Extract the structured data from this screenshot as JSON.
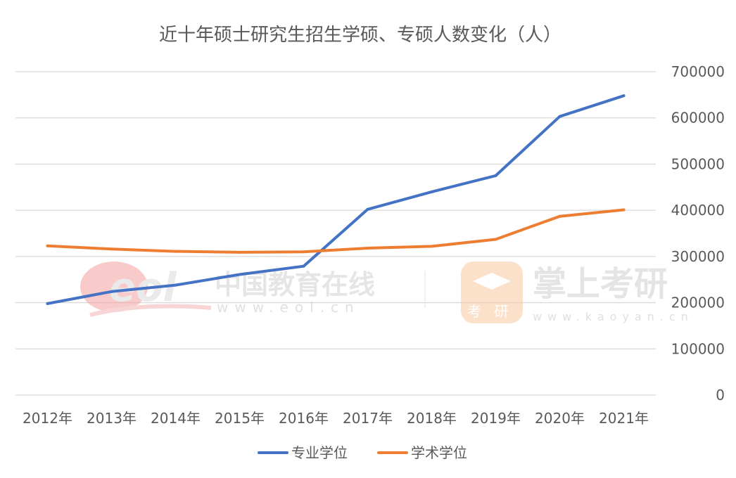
{
  "chart_data": {
    "type": "line",
    "title": "近十年硕士研究生招生学硕、专硕人数变化（人）",
    "categories": [
      "2012年",
      "2013年",
      "2014年",
      "2015年",
      "2016年",
      "2017年",
      "2018年",
      "2019年",
      "2020年",
      "2021年"
    ],
    "y_ticks": [
      "0",
      "100000",
      "200000",
      "300000",
      "400000",
      "500000",
      "600000",
      "700000"
    ],
    "ylim": [
      0,
      700000
    ],
    "grid": true,
    "y_axis_side": "right",
    "legend_position": "bottom",
    "series": [
      {
        "name": "专业学位",
        "color": "#4472C4",
        "values": [
          198000,
          224000,
          238000,
          261000,
          279000,
          402000,
          440000,
          475000,
          603000,
          648000
        ]
      },
      {
        "name": "学术学位",
        "color": "#ED7D31",
        "values": [
          323000,
          316000,
          311000,
          309000,
          310000,
          318000,
          322000,
          337000,
          387000,
          401000
        ]
      }
    ]
  },
  "watermarks": {
    "eol_logo": "eol",
    "eol_name": "中国教育在线",
    "eol_url": "www.eol.cn",
    "kaoyan_icon_text": "考 研",
    "kaoyan_name": "掌上考研",
    "kaoyan_url": "www.kaoyan.cn"
  }
}
